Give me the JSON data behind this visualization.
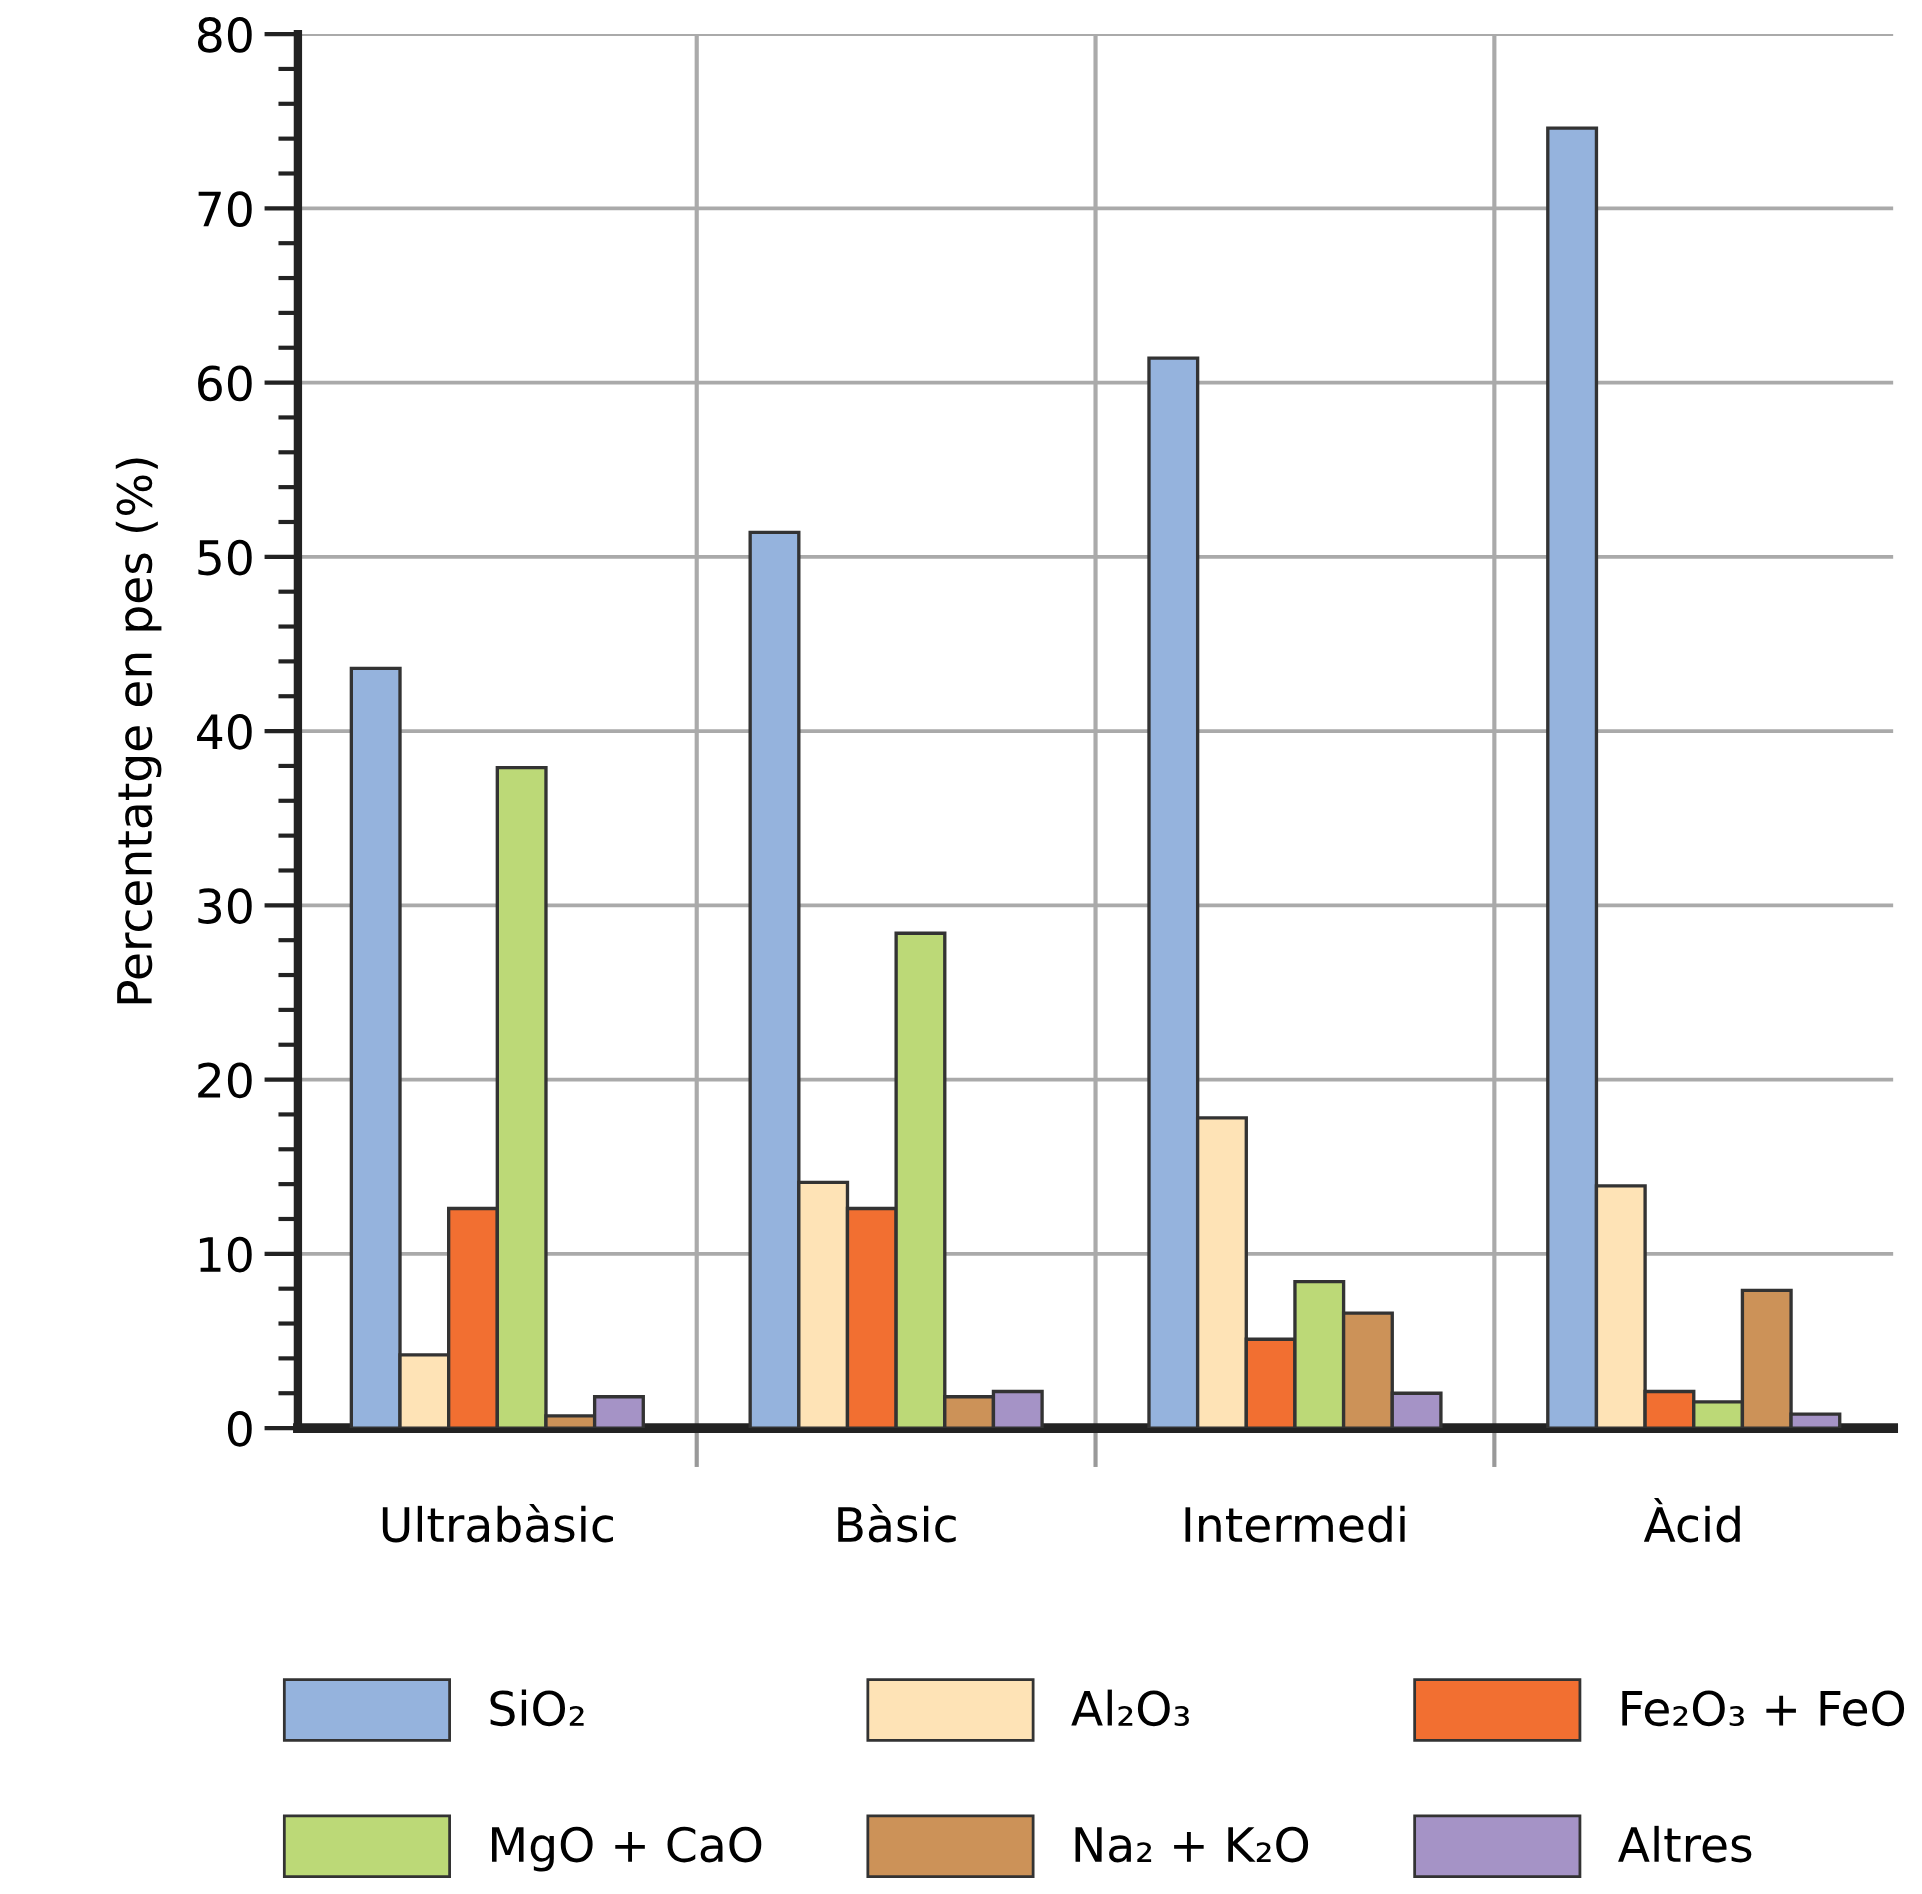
{
  "chart_data": {
    "type": "bar",
    "categories": [
      "Ultrabàsic",
      "Bàsic",
      "Intermedi",
      "Àcid"
    ],
    "ylabel": "Percentatge en pes (%)",
    "ylim": [
      0,
      80
    ],
    "yticks": [
      0,
      10,
      20,
      30,
      40,
      50,
      60,
      70,
      80
    ],
    "grid": true,
    "legend": "bottom",
    "series": [
      {
        "name": "SiO₂",
        "color": "#95b3dd",
        "values": [
          43.6,
          51.4,
          61.4,
          74.6
        ]
      },
      {
        "name": "Al₂O₃",
        "color": "#fee3b6",
        "values": [
          4.2,
          14.1,
          17.8,
          13.9
        ]
      },
      {
        "name": "Fe₂O₃ + FeO",
        "color": "#f26f31",
        "values": [
          12.6,
          12.6,
          5.1,
          2.1
        ]
      },
      {
        "name": "MgO + CaO",
        "color": "#bcd977",
        "values": [
          37.9,
          28.4,
          8.4,
          1.5
        ]
      },
      {
        "name": "Na₂ + K₂O",
        "color": "#cc9258",
        "values": [
          0.7,
          1.8,
          6.6,
          7.9
        ]
      },
      {
        "name": "Altres",
        "color": "#a593c6",
        "values": [
          1.8,
          2.1,
          2.0,
          0.8
        ]
      }
    ]
  }
}
